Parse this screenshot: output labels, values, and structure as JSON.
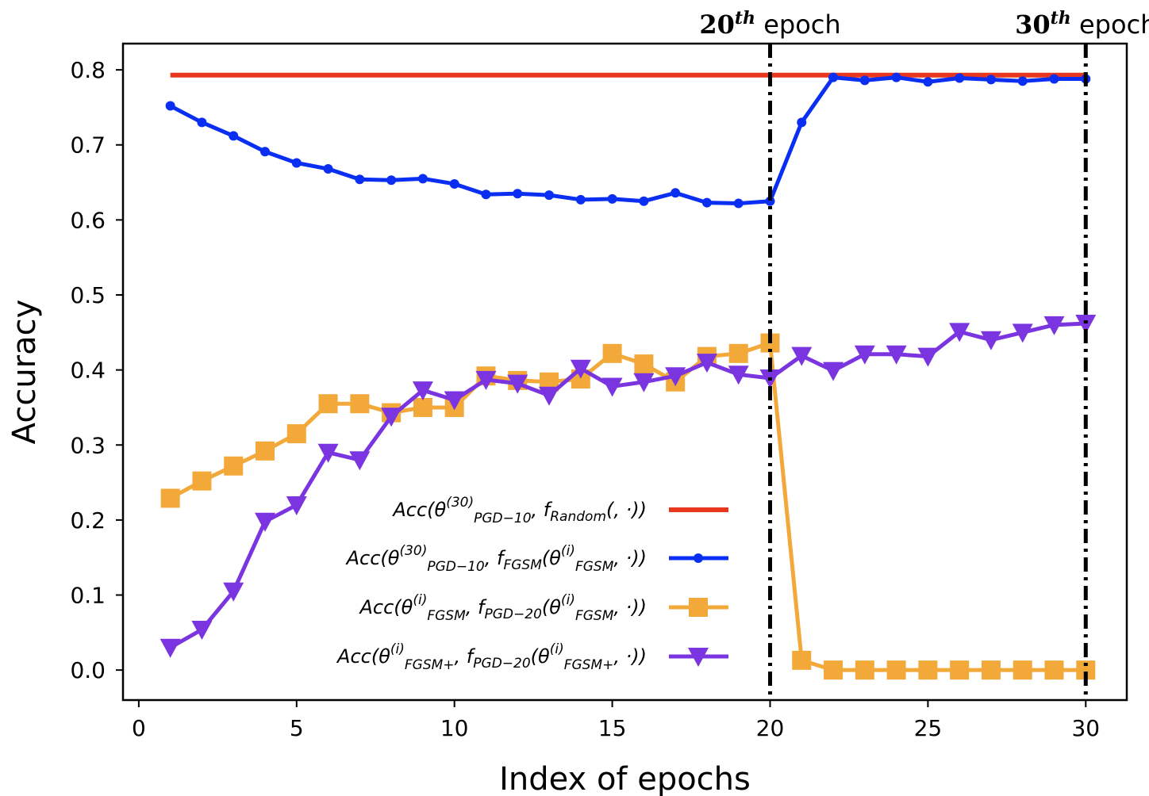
{
  "chart_data": {
    "type": "line",
    "xlabel": "Index of epochs",
    "ylabel": "Accuracy",
    "xlim": [
      -0.5,
      31.3
    ],
    "ylim": [
      -0.04,
      0.835
    ],
    "xticks": [
      "0",
      "5",
      "10",
      "15",
      "20",
      "25",
      "30"
    ],
    "yticks": [
      "0.0",
      "0.1",
      "0.2",
      "0.3",
      "0.4",
      "0.5",
      "0.6",
      "0.7",
      "0.8"
    ],
    "grid": false,
    "legend_position": "lower-center",
    "vertical_lines": [
      {
        "x": 20,
        "label_base": "20",
        "label_sup": "th",
        "label_rest": " epoch"
      },
      {
        "x": 30,
        "label_base": "30",
        "label_sup": "th",
        "label_rest": " epoch"
      }
    ],
    "x": [
      1,
      2,
      3,
      4,
      5,
      6,
      7,
      8,
      9,
      10,
      11,
      12,
      13,
      14,
      15,
      16,
      17,
      18,
      19,
      20,
      21,
      22,
      23,
      24,
      25,
      26,
      27,
      28,
      29,
      30
    ],
    "series": [
      {
        "name": "Acc(θ(30) PGD−10, fRandom(,·))",
        "color": "#e8371f",
        "marker": "none",
        "values": [
          0.793,
          0.793,
          0.793,
          0.793,
          0.793,
          0.793,
          0.793,
          0.793,
          0.793,
          0.793,
          0.793,
          0.793,
          0.793,
          0.793,
          0.793,
          0.793,
          0.793,
          0.793,
          0.793,
          0.793,
          0.793,
          0.793,
          0.793,
          0.793,
          0.793,
          0.793,
          0.793,
          0.793,
          0.793,
          0.793
        ]
      },
      {
        "name": "Acc(θ(30) PGD−10, fFGSM(θ(i) FGSM,·))",
        "color": "#0a2ff2",
        "marker": "circle",
        "values": [
          0.752,
          0.73,
          0.712,
          0.691,
          0.676,
          0.668,
          0.654,
          0.653,
          0.655,
          0.648,
          0.634,
          0.635,
          0.633,
          0.627,
          0.628,
          0.625,
          0.636,
          0.623,
          0.622,
          0.625,
          0.73,
          0.79,
          0.786,
          0.79,
          0.784,
          0.789,
          0.787,
          0.785,
          0.788,
          0.788
        ]
      },
      {
        "name": "Acc(θ(i) FGSM, fPGD−20(θ(i) FGSM,·))",
        "color": "#f3a93a",
        "marker": "square",
        "values": [
          0.229,
          0.252,
          0.272,
          0.292,
          0.315,
          0.355,
          0.355,
          0.343,
          0.35,
          0.35,
          0.392,
          0.386,
          0.384,
          0.388,
          0.422,
          0.408,
          0.384,
          0.418,
          0.422,
          0.436,
          0.013,
          0.0,
          0.0,
          0.0,
          0.0,
          0.0,
          0.0,
          0.0,
          0.0,
          0.0
        ]
      },
      {
        "name": "Acc(θ(i) FGSM+, fPGD−20(θ(i) FGSM+,·))",
        "color": "#7b35e0",
        "marker": "triangle-down",
        "values": [
          0.03,
          0.054,
          0.105,
          0.198,
          0.22,
          0.29,
          0.28,
          0.338,
          0.373,
          0.36,
          0.387,
          0.382,
          0.366,
          0.402,
          0.378,
          0.384,
          0.392,
          0.41,
          0.394,
          0.389,
          0.419,
          0.399,
          0.421,
          0.421,
          0.418,
          0.451,
          0.44,
          0.45,
          0.46,
          0.462
        ]
      }
    ],
    "legend": [
      {
        "pre": "Acc(θ",
        "sup": "(30)",
        "sub": "PGD−10",
        "mid": ", f",
        "fsub": "Random",
        "post": "(, ·))"
      },
      {
        "pre": "Acc(θ",
        "sup": "(30)",
        "sub": "PGD−10",
        "mid": ", f",
        "fsub": "FGSM",
        "inner_pre": "(θ",
        "inner_sup": "(i)",
        "inner_sub": "FGSM",
        "post": ", ·))"
      },
      {
        "pre": "Acc(θ",
        "sup": "(i)",
        "sub": "FGSM",
        "mid": ", f",
        "fsub": "PGD−20",
        "inner_pre": "(θ",
        "inner_sup": "(i)",
        "inner_sub": "FGSM",
        "post": ", ·))"
      },
      {
        "pre": "Acc(θ",
        "sup": "(i)",
        "sub": "FGSM+",
        "mid": ", f",
        "fsub": "PGD−20",
        "inner_pre": "(θ",
        "inner_sup": "(i)",
        "inner_sub": "FGSM+",
        "post": ", ·))"
      }
    ]
  }
}
